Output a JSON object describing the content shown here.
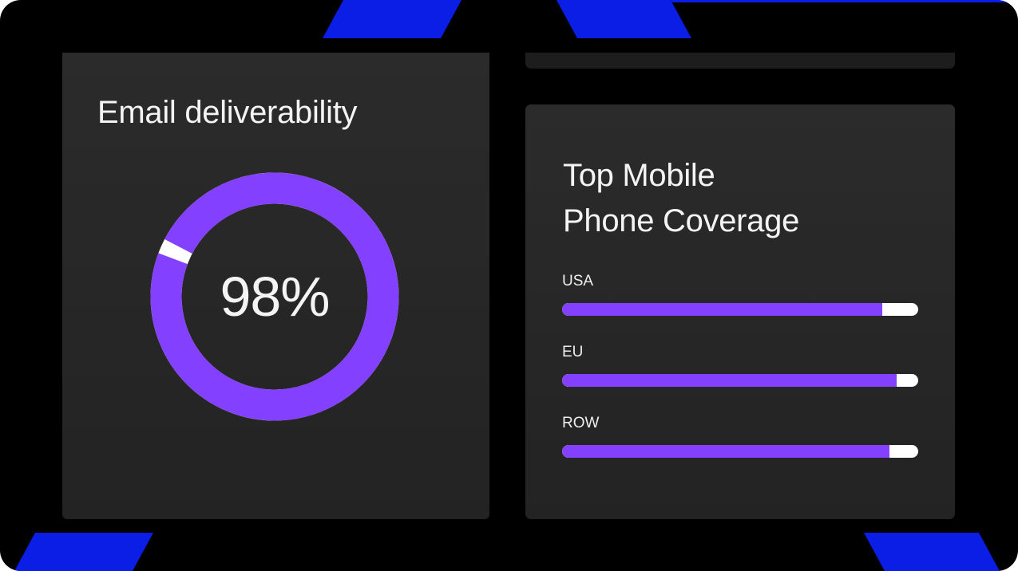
{
  "colors": {
    "accent": "#8440ff",
    "remainder": "#ffffff",
    "background": "#000000",
    "card": "#272727",
    "text": "#f4f4f4",
    "decoration": "#0a1ee6"
  },
  "email_card": {
    "title": "Email deliverability",
    "value_label": "98%",
    "value": 98
  },
  "coverage_card": {
    "title_line1": "Top Mobile",
    "title_line2": "Phone Coverage",
    "regions": [
      {
        "label": "USA",
        "value": 90
      },
      {
        "label": "EU",
        "value": 94
      },
      {
        "label": "ROW",
        "value": 92
      }
    ]
  }
}
